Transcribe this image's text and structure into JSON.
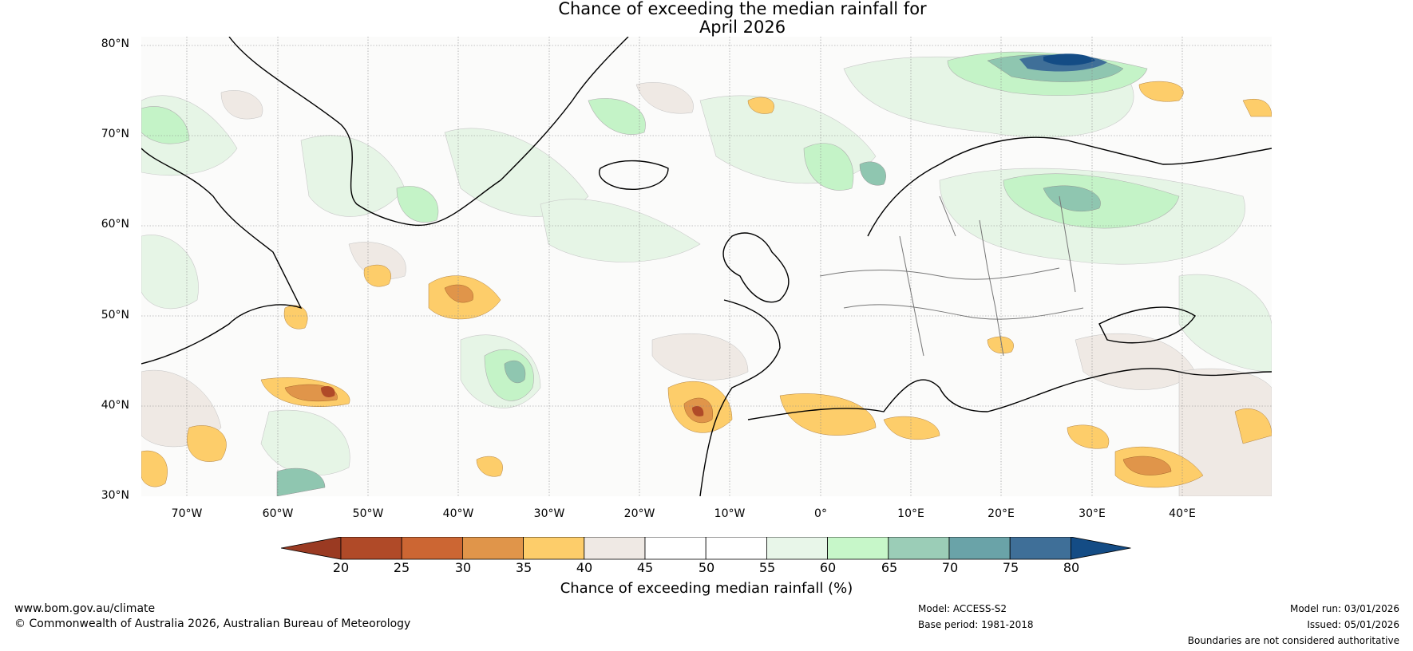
{
  "title": {
    "line1": "Chance of exceeding the median rainfall for",
    "line2": "April 2026"
  },
  "map": {
    "lat_labels": [
      "80°N",
      "70°N",
      "60°N",
      "50°N",
      "40°N",
      "30°N"
    ],
    "lon_labels": [
      "70°W",
      "60°W",
      "50°W",
      "40°W",
      "30°W",
      "20°W",
      "10°W",
      "0°",
      "10°E",
      "20°E",
      "30°E",
      "40°E"
    ]
  },
  "colorbar": {
    "label": "Chance of exceeding median rainfall (%)",
    "ticks": [
      "20",
      "25",
      "30",
      "35",
      "40",
      "45",
      "50",
      "55",
      "60",
      "65",
      "70",
      "75",
      "80"
    ],
    "colors": [
      "#9a3a22",
      "#b04a28",
      "#cc6633",
      "#e0954a",
      "#fdcd6a",
      "#efe9e4",
      "#ffffff",
      "#ffffff",
      "#e8f6e9",
      "#c7f7c9",
      "#9bcdb7",
      "#6aa3a8",
      "#3f6f98",
      "#144c85"
    ]
  },
  "footer": {
    "website": "www.bom.gov.au/climate",
    "copyright": "© Commonwealth of Australia 2026, Australian Bureau of Meteorology",
    "model": "Model: ACCESS-S2",
    "base_period": "Base period: 1981-2018",
    "model_run": "Model run: 03/01/2026",
    "issued": "Issued: 05/01/2026",
    "disclaimer": "Boundaries are not considered authoritative"
  }
}
